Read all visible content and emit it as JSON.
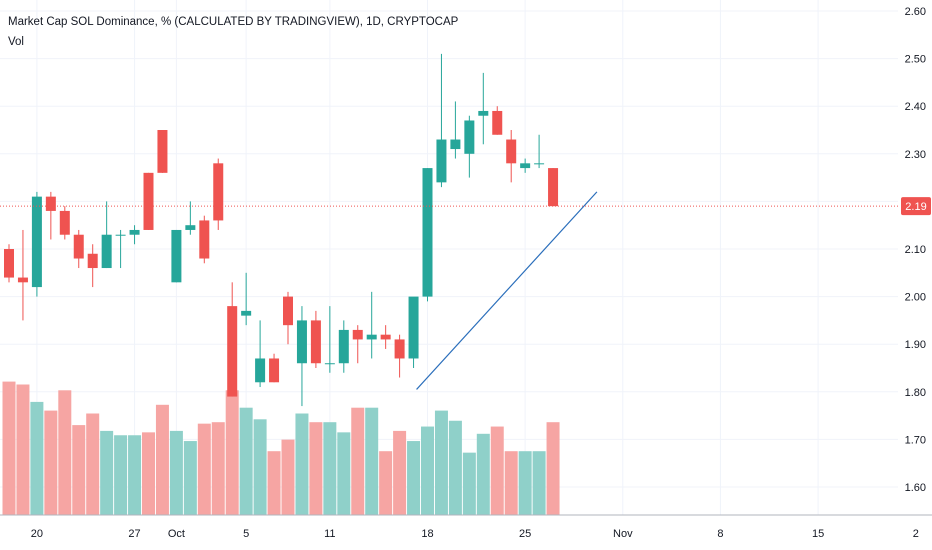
{
  "chart_data": {
    "type": "candlestick",
    "title": "Market Cap SOL Dominance, % (CALCULATED BY TRADINGVIEW), 1D, CRYPTOCAP",
    "subtitle": "Vol",
    "y_ticks": [
      "2.60",
      "2.50",
      "2.40",
      "2.30",
      "2.20",
      "2.10",
      "2.00",
      "1.90",
      "1.80",
      "1.70",
      "1.60"
    ],
    "ylim": [
      1.55,
      2.62
    ],
    "x_ticks": [
      "20",
      "27",
      "Oct",
      "5",
      "11",
      "18",
      "25",
      "Nov",
      "8",
      "15",
      "2"
    ],
    "last_price": "2.19",
    "colors": {
      "up": "#26a69a",
      "down": "#ef5350",
      "volume_up": "#8fd0c9",
      "volume_down": "#f6a5a3",
      "trendline": "#2a6ebb",
      "price_line": "#ef5350"
    },
    "candles": [
      {
        "date": "Sep 18",
        "o": 2.1,
        "h": 2.11,
        "l": 2.03,
        "c": 2.04
      },
      {
        "date": "Sep 19",
        "o": 2.04,
        "h": 2.14,
        "l": 1.95,
        "c": 2.03
      },
      {
        "date": "Sep 20",
        "o": 2.02,
        "h": 2.22,
        "l": 2.0,
        "c": 2.21
      },
      {
        "date": "Sep 21",
        "o": 2.21,
        "h": 2.22,
        "l": 2.12,
        "c": 2.18
      },
      {
        "date": "Sep 22",
        "o": 2.18,
        "h": 2.19,
        "l": 2.12,
        "c": 2.13
      },
      {
        "date": "Sep 23",
        "o": 2.13,
        "h": 2.14,
        "l": 2.06,
        "c": 2.08
      },
      {
        "date": "Sep 24",
        "o": 2.09,
        "h": 2.11,
        "l": 2.02,
        "c": 2.06
      },
      {
        "date": "Sep 25",
        "o": 2.06,
        "h": 2.2,
        "l": 2.06,
        "c": 2.13
      },
      {
        "date": "Sep 26",
        "o": 2.13,
        "h": 2.14,
        "l": 2.06,
        "c": 2.13
      },
      {
        "date": "Sep 27",
        "o": 2.13,
        "h": 2.15,
        "l": 2.11,
        "c": 2.14
      },
      {
        "date": "Sep 28",
        "o": 2.26,
        "h": 2.26,
        "l": 2.14,
        "c": 2.14
      },
      {
        "date": "Sep 29",
        "o": 2.35,
        "h": 2.35,
        "l": 2.26,
        "c": 2.26
      },
      {
        "date": "Sep 30",
        "o": 2.03,
        "h": 2.14,
        "l": 2.03,
        "c": 2.14
      },
      {
        "date": "Oct 1",
        "o": 2.14,
        "h": 2.2,
        "l": 2.13,
        "c": 2.15
      },
      {
        "date": "Oct 2",
        "o": 2.16,
        "h": 2.17,
        "l": 2.07,
        "c": 2.08
      },
      {
        "date": "Oct 3",
        "o": 2.28,
        "h": 2.29,
        "l": 2.14,
        "c": 2.16
      },
      {
        "date": "Oct 4",
        "o": 1.98,
        "h": 2.03,
        "l": 1.79,
        "c": 1.79
      },
      {
        "date": "Oct 5",
        "o": 1.96,
        "h": 2.05,
        "l": 1.94,
        "c": 1.97
      },
      {
        "date": "Oct 6",
        "o": 1.82,
        "h": 1.95,
        "l": 1.81,
        "c": 1.87
      },
      {
        "date": "Oct 7",
        "o": 1.87,
        "h": 1.88,
        "l": 1.82,
        "c": 1.82
      },
      {
        "date": "Oct 8",
        "o": 2.0,
        "h": 2.01,
        "l": 1.9,
        "c": 1.94
      },
      {
        "date": "Oct 9",
        "o": 1.86,
        "h": 1.98,
        "l": 1.77,
        "c": 1.95
      },
      {
        "date": "Oct 10",
        "o": 1.95,
        "h": 1.97,
        "l": 1.85,
        "c": 1.86
      },
      {
        "date": "Oct 11",
        "o": 1.86,
        "h": 1.98,
        "l": 1.84,
        "c": 1.86
      },
      {
        "date": "Oct 12",
        "o": 1.86,
        "h": 1.95,
        "l": 1.84,
        "c": 1.93
      },
      {
        "date": "Oct 13",
        "o": 1.93,
        "h": 1.94,
        "l": 1.86,
        "c": 1.91
      },
      {
        "date": "Oct 14",
        "o": 1.91,
        "h": 2.01,
        "l": 1.87,
        "c": 1.92
      },
      {
        "date": "Oct 15",
        "o": 1.92,
        "h": 1.94,
        "l": 1.89,
        "c": 1.91
      },
      {
        "date": "Oct 16",
        "o": 1.91,
        "h": 1.92,
        "l": 1.83,
        "c": 1.87
      },
      {
        "date": "Oct 17",
        "o": 1.87,
        "h": 1.99,
        "l": 1.85,
        "c": 2.0
      },
      {
        "date": "Oct 18",
        "o": 2.0,
        "h": 2.27,
        "l": 1.99,
        "c": 2.27
      },
      {
        "date": "Oct 19",
        "o": 2.24,
        "h": 2.51,
        "l": 2.23,
        "c": 2.33
      },
      {
        "date": "Oct 20",
        "o": 2.31,
        "h": 2.41,
        "l": 2.29,
        "c": 2.33
      },
      {
        "date": "Oct 21",
        "o": 2.3,
        "h": 2.38,
        "l": 2.25,
        "c": 2.37
      },
      {
        "date": "Oct 22",
        "o": 2.38,
        "h": 2.47,
        "l": 2.32,
        "c": 2.39
      },
      {
        "date": "Oct 23",
        "o": 2.39,
        "h": 2.4,
        "l": 2.34,
        "c": 2.34
      },
      {
        "date": "Oct 24",
        "o": 2.33,
        "h": 2.35,
        "l": 2.24,
        "c": 2.28
      },
      {
        "date": "Oct 25",
        "o": 2.27,
        "h": 2.29,
        "l": 2.26,
        "c": 2.28
      },
      {
        "date": "Oct 26",
        "o": 2.28,
        "h": 2.34,
        "l": 2.27,
        "c": 2.28
      },
      {
        "date": "Oct 27",
        "o": 2.27,
        "h": 2.27,
        "l": 2.19,
        "c": 2.19
      }
    ],
    "volume": [
      0.92,
      0.9,
      0.78,
      0.72,
      0.86,
      0.62,
      0.7,
      0.58,
      0.55,
      0.55,
      0.57,
      0.76,
      0.58,
      0.51,
      0.63,
      0.64,
      0.86,
      0.74,
      0.66,
      0.44,
      0.52,
      0.7,
      0.64,
      0.64,
      0.57,
      0.74,
      0.74,
      0.44,
      0.58,
      0.51,
      0.61,
      0.72,
      0.65,
      0.43,
      0.56,
      0.61,
      0.44,
      0.44,
      0.44,
      0.64
    ],
    "trendline": [
      {
        "date": "Oct 17",
        "value": 1.805
      },
      {
        "date": "Oct 30",
        "value": 2.22
      }
    ]
  }
}
